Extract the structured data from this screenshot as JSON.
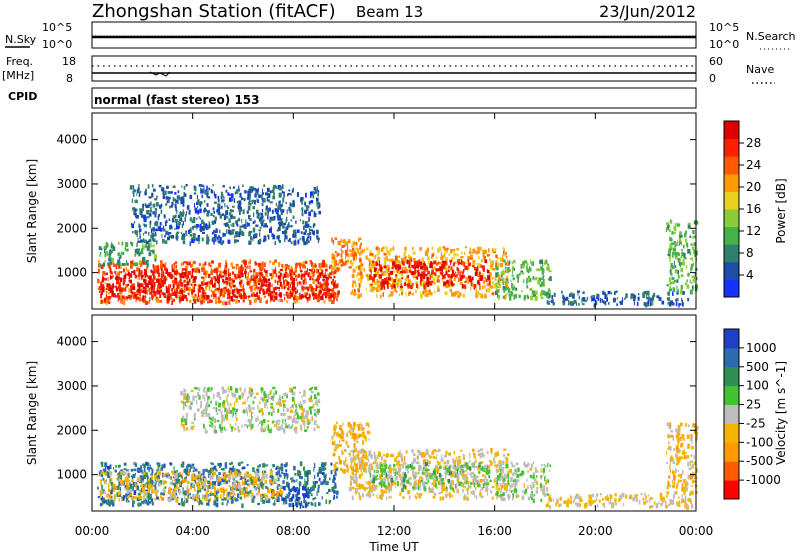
{
  "header": {
    "station": "Zhongshan Station (fitACF)",
    "beam": "Beam 13",
    "date": "23/Jun/2012"
  },
  "left_labels": {
    "nsky": "N.Sky",
    "freq": "Freq.",
    "freq_unit": "[MHz]",
    "cpid": "CPID"
  },
  "right_labels": {
    "nsearch": "N.Search",
    "nave": "Nave"
  },
  "noise_axis": {
    "left_ticks": [
      "10^5",
      "10^0"
    ],
    "right_ticks": [
      "10^5",
      "10^0"
    ]
  },
  "freq_axis": {
    "left_ticks": [
      "18",
      "8"
    ],
    "right_ticks": [
      "60",
      "0"
    ]
  },
  "cpid_text": "normal (fast stereo) 153",
  "xaxis": {
    "label": "Time UT",
    "ticks": [
      "00:00",
      "04:00",
      "08:00",
      "12:00",
      "16:00",
      "20:00",
      "00:00"
    ]
  },
  "colors": {
    "power_scale": [
      "#1432ff",
      "#1c4ea8",
      "#2f7f6e",
      "#46b04a",
      "#8ccc3a",
      "#e8d21c",
      "#ff9a00",
      "#ff5a00",
      "#ff2000",
      "#e10000"
    ],
    "velocity_scale": [
      "#ff0000",
      "#ff5a00",
      "#ff9a00",
      "#f4b400",
      "#bdbdbd",
      "#44c233",
      "#2f8f52",
      "#2d6bb0",
      "#1f3fc4"
    ]
  },
  "chart_data": [
    {
      "type": "heatmap",
      "title": "",
      "quantity": "Power",
      "ylabel": "Slant Range [km]",
      "xlabel": "Time UT",
      "ylim": [
        180,
        4600
      ],
      "yticks": [
        1000,
        2000,
        3000,
        4000
      ],
      "xlim_hours": [
        0,
        24
      ],
      "colorbar": {
        "label": "Power [dB]",
        "ticks": [
          "4",
          "8",
          "12",
          "16",
          "20",
          "24",
          "28"
        ],
        "range": [
          0,
          32
        ]
      },
      "regions": [
        {
          "t0": 0.2,
          "t1": 9.8,
          "r0": 350,
          "r1": 1300,
          "value": 24
        },
        {
          "t0": 0.3,
          "t1": 9.6,
          "r0": 450,
          "r1": 1100,
          "value": 30
        },
        {
          "t0": 9.5,
          "t1": 10.7,
          "r0": 1100,
          "r1": 1800,
          "value": 22
        },
        {
          "t0": 10.2,
          "t1": 16.5,
          "r0": 500,
          "r1": 1600,
          "value": 20
        },
        {
          "t0": 11.0,
          "t1": 15.8,
          "r0": 700,
          "r1": 1300,
          "value": 29
        },
        {
          "t0": 16.0,
          "t1": 18.2,
          "r0": 450,
          "r1": 1300,
          "value": 12
        },
        {
          "t0": 18.0,
          "t1": 23.8,
          "r0": 300,
          "r1": 600,
          "value": 6
        },
        {
          "t0": 22.8,
          "t1": 24.0,
          "r0": 600,
          "r1": 2200,
          "value": 12
        },
        {
          "t0": 1.5,
          "t1": 9.0,
          "r0": 1700,
          "r1": 3000,
          "value": 6
        },
        {
          "t0": 0.2,
          "t1": 2.5,
          "r0": 1200,
          "r1": 1700,
          "value": 10
        }
      ]
    },
    {
      "type": "heatmap",
      "title": "",
      "quantity": "Velocity",
      "ylabel": "Slant Range [km]",
      "xlabel": "Time UT",
      "ylim": [
        180,
        4600
      ],
      "yticks": [
        1000,
        2000,
        3000,
        4000
      ],
      "xlim_hours": [
        0,
        24
      ],
      "colorbar": {
        "label": "Velocity [m s^-1]",
        "ticks": [
          "-1000",
          "-500",
          "-100",
          "-25",
          "25",
          "100",
          "500",
          "1000"
        ],
        "range": [
          -1000,
          1000
        ]
      },
      "regions": [
        {
          "t0": 0.2,
          "t1": 9.8,
          "r0": 350,
          "r1": 1300,
          "value": 600
        },
        {
          "t0": 0.3,
          "t1": 7.5,
          "r0": 450,
          "r1": 1100,
          "value": -200
        },
        {
          "t0": 7.5,
          "t1": 8.6,
          "r0": 300,
          "r1": 800,
          "value": 900
        },
        {
          "t0": 9.5,
          "t1": 11.0,
          "r0": 1100,
          "r1": 2200,
          "value": -300
        },
        {
          "t0": 10.2,
          "t1": 16.5,
          "r0": 500,
          "r1": 1600,
          "value": -150
        },
        {
          "t0": 11.0,
          "t1": 15.8,
          "r0": 700,
          "r1": 1300,
          "value": 150
        },
        {
          "t0": 16.0,
          "t1": 18.2,
          "r0": 450,
          "r1": 1300,
          "value": 60
        },
        {
          "t0": 18.0,
          "t1": 23.8,
          "r0": 300,
          "r1": 600,
          "value": -120
        },
        {
          "t0": 22.8,
          "t1": 24.0,
          "r0": 600,
          "r1": 2200,
          "value": -200
        },
        {
          "t0": 3.5,
          "t1": 9.0,
          "r0": 2000,
          "r1": 3000,
          "value": 40
        }
      ]
    }
  ]
}
